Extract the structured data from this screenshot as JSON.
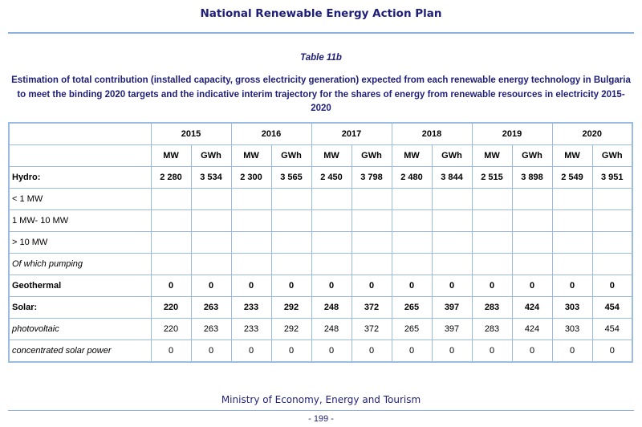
{
  "header": {
    "title": "National Renewable Energy Action Plan"
  },
  "table": {
    "caption": "Table 11b",
    "description": "Estimation of total contribution (installed capacity, gross electricity generation) expected from each renewable energy technology in Bulgaria to meet the binding 2020 targets and the indicative interim trajectory for the shares of energy from renewable resources in electricity 2015-2020",
    "years": [
      "2015",
      "2016",
      "2017",
      "2018",
      "2019",
      "2020"
    ],
    "units": [
      "MW",
      "GWh"
    ],
    "rows": [
      {
        "label": "Hydro:",
        "style": "bold",
        "values": [
          "2 280",
          "3 534",
          "2 300",
          "3 565",
          "2 450",
          "3 798",
          "2 480",
          "3 844",
          "2 515",
          "3 898",
          "2 549",
          "3 951"
        ]
      },
      {
        "label": "< 1 MW",
        "style": "normal",
        "values": [
          "",
          "",
          "",
          "",
          "",
          "",
          "",
          "",
          "",
          "",
          "",
          ""
        ]
      },
      {
        "label": "1 MW- 10 MW",
        "style": "normal",
        "values": [
          "",
          "",
          "",
          "",
          "",
          "",
          "",
          "",
          "",
          "",
          "",
          ""
        ]
      },
      {
        "label": "> 10 MW",
        "style": "normal",
        "values": [
          "",
          "",
          "",
          "",
          "",
          "",
          "",
          "",
          "",
          "",
          "",
          ""
        ]
      },
      {
        "label": "Of which pumping",
        "style": "italic",
        "values": [
          "",
          "",
          "",
          "",
          "",
          "",
          "",
          "",
          "",
          "",
          "",
          ""
        ]
      },
      {
        "label": "Geothermal",
        "style": "bold",
        "values": [
          "0",
          "0",
          "0",
          "0",
          "0",
          "0",
          "0",
          "0",
          "0",
          "0",
          "0",
          "0"
        ]
      },
      {
        "label": "Solar:",
        "style": "bold",
        "values": [
          "220",
          "263",
          "233",
          "292",
          "248",
          "372",
          "265",
          "397",
          "283",
          "424",
          "303",
          "454"
        ]
      },
      {
        "label": "photovoltaic",
        "style": "italic",
        "values": [
          "220",
          "263",
          "233",
          "292",
          "248",
          "372",
          "265",
          "397",
          "283",
          "424",
          "303",
          "454"
        ]
      },
      {
        "label": "concentrated solar power",
        "style": "italic",
        "values": [
          "0",
          "0",
          "0",
          "0",
          "0",
          "0",
          "0",
          "0",
          "0",
          "0",
          "0",
          "0"
        ]
      }
    ]
  },
  "footer": {
    "ministry": "Ministry of Economy, Energy and Tourism",
    "page_number": "- 199 -"
  },
  "colors": {
    "title": "#1f1f7a",
    "rule": "#8eaedc",
    "table_border": "#9cbbe0"
  }
}
